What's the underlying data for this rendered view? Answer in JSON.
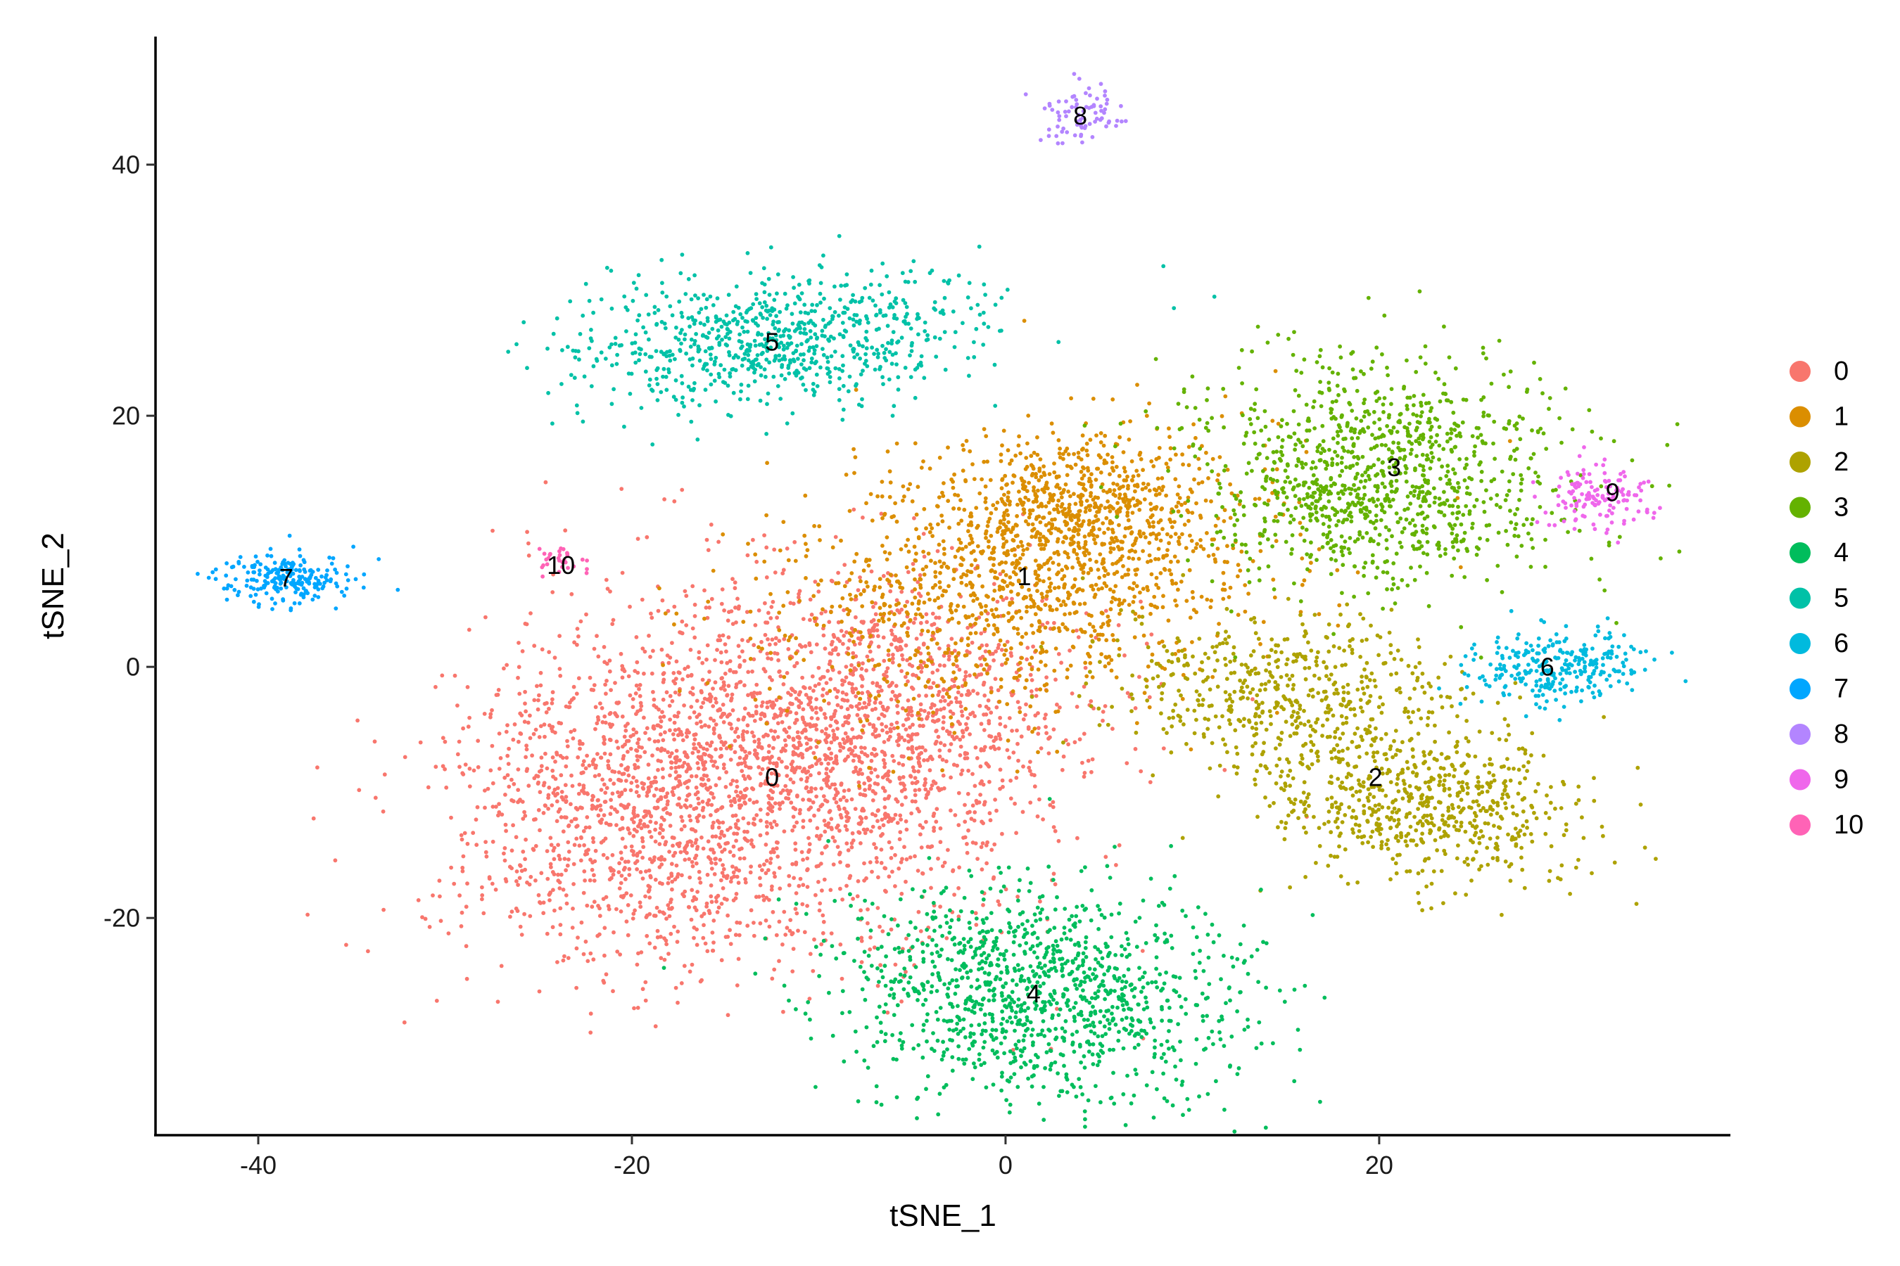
{
  "chart_data": {
    "type": "scatter",
    "title": "",
    "xlabel": "tSNE_1",
    "ylabel": "tSNE_2",
    "xlim": [
      -45.5,
      38.8
    ],
    "ylim": [
      -37.3,
      50.2
    ],
    "x_ticks": [
      -40,
      -20,
      0,
      20
    ],
    "x_tick_labels": [
      "-40",
      "-20",
      "0",
      "20"
    ],
    "y_ticks": [
      -20,
      0,
      20,
      40
    ],
    "y_tick_labels": [
      "-20",
      "0",
      "20",
      "40"
    ],
    "grid": false,
    "legend_position": "right",
    "point_size": "small",
    "clusters": [
      {
        "name": "0",
        "color": "#F8766D",
        "label_at": [
          -12.5,
          -8.8
        ],
        "approx_points": 3300
      },
      {
        "name": "1",
        "color": "#DB8E00",
        "label_at": [
          1.0,
          7.2
        ],
        "approx_points": 1700
      },
      {
        "name": "2",
        "color": "#AEA200",
        "label_at": [
          19.8,
          -8.8
        ],
        "approx_points": 1200
      },
      {
        "name": "3",
        "color": "#64B200",
        "label_at": [
          20.8,
          15.9
        ],
        "approx_points": 1100
      },
      {
        "name": "4",
        "color": "#00BD5C",
        "label_at": [
          1.5,
          -26.0
        ],
        "approx_points": 1200
      },
      {
        "name": "5",
        "color": "#00C1A7",
        "label_at": [
          -12.5,
          25.9
        ],
        "approx_points": 800
      },
      {
        "name": "6",
        "color": "#00BADE",
        "label_at": [
          29.0,
          0.0
        ],
        "approx_points": 280
      },
      {
        "name": "7",
        "color": "#00A6FF",
        "label_at": [
          -38.5,
          7.1
        ],
        "approx_points": 220
      },
      {
        "name": "8",
        "color": "#B385FF",
        "label_at": [
          4.0,
          43.9
        ],
        "approx_points": 80
      },
      {
        "name": "9",
        "color": "#EF67EB",
        "label_at": [
          32.5,
          13.9
        ],
        "approx_points": 140
      },
      {
        "name": "10",
        "color": "#FF63B6",
        "label_at": [
          -23.8,
          8.1
        ],
        "approx_points": 30
      }
    ]
  }
}
